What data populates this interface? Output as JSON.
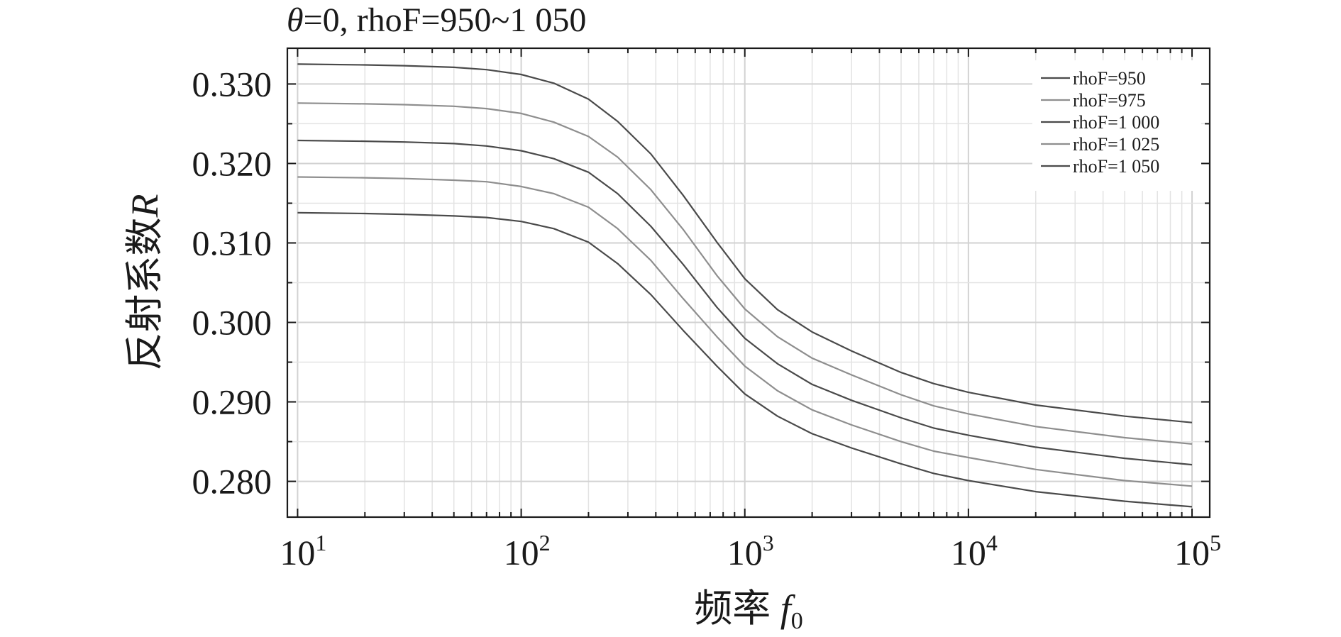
{
  "chart_data": {
    "type": "line",
    "title_prefix": "θ",
    "title_rest": "=0, rhoF=950~1 050",
    "xlabel_cn": "频率 ",
    "xlabel_var": "f",
    "xlabel_sub": "0",
    "ylabel_cn": "反射系数",
    "ylabel_var": "R",
    "x_scale": "log",
    "xlim": [
      9,
      120000
    ],
    "ylim": [
      0.2755,
      0.3345
    ],
    "x_ticks": [
      {
        "value": 10,
        "base": "10",
        "exp": "1"
      },
      {
        "value": 100,
        "base": "10",
        "exp": "2"
      },
      {
        "value": 1000,
        "base": "10",
        "exp": "3"
      },
      {
        "value": 10000,
        "base": "10",
        "exp": "4"
      },
      {
        "value": 100000,
        "base": "10",
        "exp": "5"
      }
    ],
    "y_ticks": [
      {
        "value": 0.28,
        "label": "0.280"
      },
      {
        "value": 0.29,
        "label": "0.290"
      },
      {
        "value": 0.3,
        "label": "0.300"
      },
      {
        "value": 0.31,
        "label": "0.310"
      },
      {
        "value": 0.32,
        "label": "0.320"
      },
      {
        "value": 0.33,
        "label": "0.330"
      }
    ],
    "grid": true,
    "legend_position": "top-right",
    "x": [
      10,
      20,
      30,
      50,
      70,
      100,
      140,
      200,
      270,
      380,
      530,
      750,
      1000,
      1400,
      2000,
      3000,
      5000,
      7000,
      10000,
      20000,
      50000,
      100000
    ],
    "series": [
      {
        "name": "rhoF=950",
        "color": "#4a4a4a",
        "values": [
          0.3325,
          0.3324,
          0.3323,
          0.3321,
          0.3318,
          0.3312,
          0.3301,
          0.3281,
          0.3253,
          0.3212,
          0.316,
          0.3101,
          0.3055,
          0.3016,
          0.2988,
          0.2964,
          0.2937,
          0.2923,
          0.2912,
          0.2896,
          0.2882,
          0.2874
        ]
      },
      {
        "name": "rhoF=975",
        "color": "#8e8e8e",
        "values": [
          0.3276,
          0.3275,
          0.3274,
          0.3272,
          0.3269,
          0.3263,
          0.3252,
          0.3234,
          0.3208,
          0.3167,
          0.3117,
          0.3059,
          0.3017,
          0.2982,
          0.2955,
          0.2934,
          0.2909,
          0.2895,
          0.2885,
          0.2869,
          0.2855,
          0.2847
        ]
      },
      {
        "name": "rhoF=1 000",
        "color": "#4a4a4a",
        "values": [
          0.3229,
          0.3228,
          0.3227,
          0.3225,
          0.3222,
          0.3216,
          0.3206,
          0.3189,
          0.3162,
          0.3121,
          0.3073,
          0.3019,
          0.298,
          0.2948,
          0.2922,
          0.2902,
          0.288,
          0.2867,
          0.2858,
          0.2843,
          0.2829,
          0.2821
        ]
      },
      {
        "name": "rhoF=1 025",
        "color": "#8e8e8e",
        "values": [
          0.3183,
          0.3182,
          0.3181,
          0.3179,
          0.3177,
          0.3171,
          0.3162,
          0.3145,
          0.3118,
          0.3078,
          0.303,
          0.2982,
          0.2945,
          0.2914,
          0.289,
          0.2871,
          0.285,
          0.2838,
          0.283,
          0.2815,
          0.2801,
          0.2794
        ]
      },
      {
        "name": "rhoF=1 050",
        "color": "#4a4a4a",
        "values": [
          0.3138,
          0.3137,
          0.3136,
          0.3134,
          0.3132,
          0.3127,
          0.3118,
          0.3101,
          0.3074,
          0.3035,
          0.299,
          0.2945,
          0.291,
          0.2882,
          0.286,
          0.2842,
          0.2822,
          0.281,
          0.2801,
          0.2787,
          0.2775,
          0.2768
        ]
      }
    ]
  }
}
